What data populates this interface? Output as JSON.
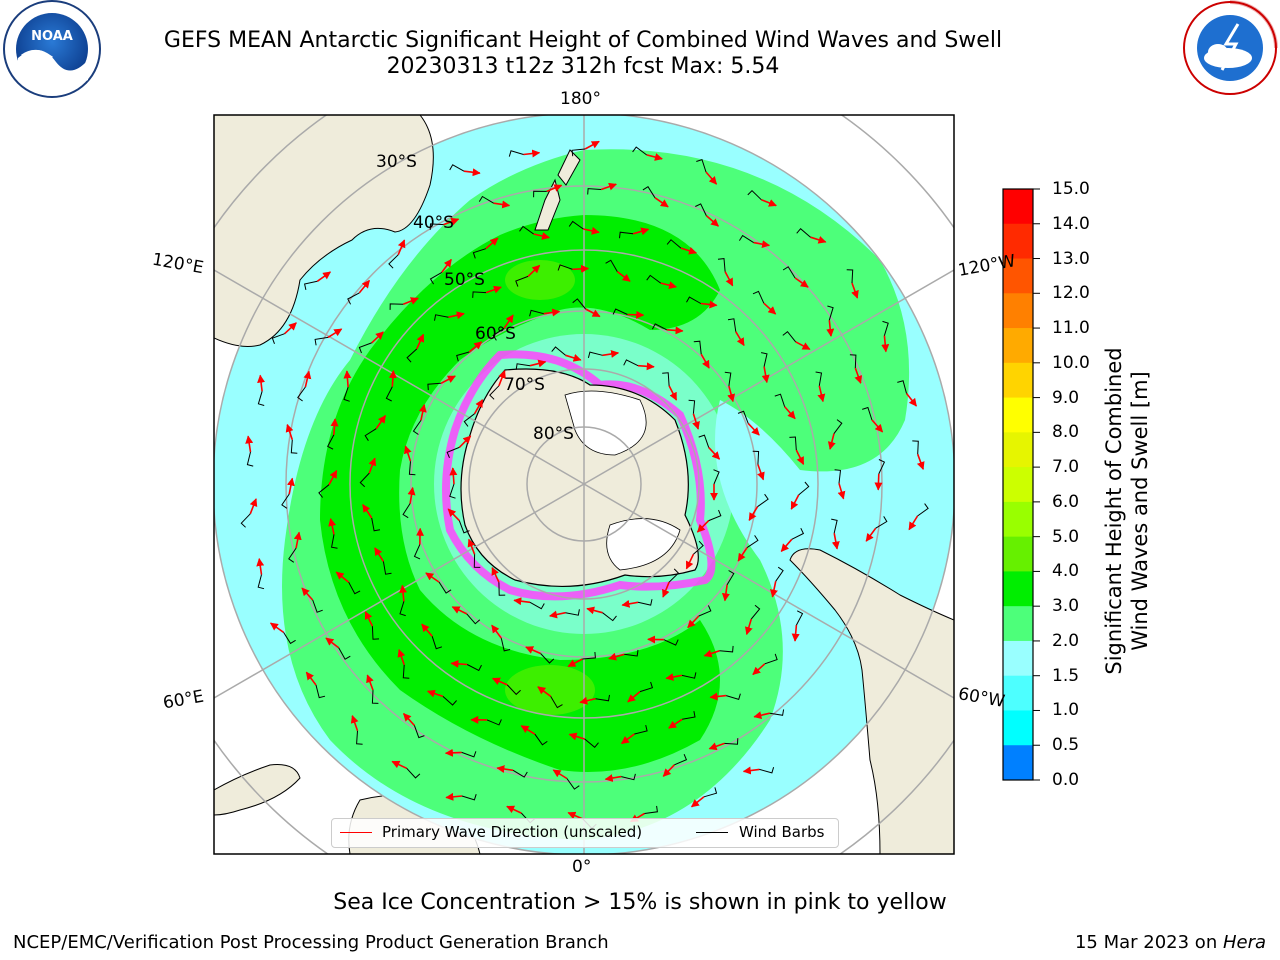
{
  "header": {
    "title_line1": "GEFS MEAN Antarctic Significant Height of Combined Wind Waves and Swell",
    "title_line2": "20230313 t12z 312h fcst   Max: 5.54"
  },
  "logos": {
    "noaa_text": "NOAA",
    "noaa_ring_text": "NATIONAL OCEANIC AND ATMOSPHERIC ADMINISTRATION · U.S. DEPARTMENT OF COMMERCE",
    "nws_ring_text": "NATIONAL WEATHER SERVICE"
  },
  "map": {
    "projection": "south-polar-stereographic",
    "lon_labels": {
      "top": "180°",
      "upper_left": "120°E",
      "upper_right": "120°W",
      "lower_left": "60°E",
      "lower_right": "60°W",
      "bottom": "0°"
    },
    "lat_labels": [
      "30°S",
      "40°S",
      "50°S",
      "60°S",
      "70°S",
      "80°S"
    ],
    "legend": {
      "wave_direction": "Primary Wave Direction (unscaled)",
      "wind_barbs": "Wind Barbs"
    },
    "colors": {
      "land": "#efecdb",
      "ocean_light": "#99ffff",
      "wave_3to4": "#4dff7a",
      "wave_4to5": "#00ee00",
      "sea_ice": "#ff44ff",
      "arrow": "#ff0000"
    }
  },
  "colorbar": {
    "label": "Significant Height of Combined Wind Waves and Swell [m]",
    "label_line1": "Significant Height of Combined",
    "label_line2": "Wind Waves and Swell [m]",
    "ticks": [
      "15.0",
      "14.0",
      "13.0",
      "12.0",
      "11.0",
      "10.0",
      "9.0",
      "8.0",
      "7.0",
      "6.0",
      "5.0",
      "4.0",
      "3.0",
      "2.0",
      "1.5",
      "1.0",
      "0.5",
      "0.0"
    ],
    "colors_top_to_bottom": [
      "#ff0000",
      "#ff2a00",
      "#ff5500",
      "#ff8000",
      "#ffaa00",
      "#ffd400",
      "#ffff00",
      "#e6f500",
      "#ccff00",
      "#99ff00",
      "#66f000",
      "#00ee00",
      "#4dff7a",
      "#99ffff",
      "#4dffff",
      "#00ffff",
      "#0080ff",
      "#0000ff"
    ]
  },
  "notes": {
    "sea_ice": "Sea Ice Concentration > 15% is shown in pink to yellow"
  },
  "footer": {
    "left": "NCEP/EMC/Verification Post Processing Product Generation Branch",
    "right_date": "15 Mar 2023 on ",
    "right_machine": "Hera"
  }
}
